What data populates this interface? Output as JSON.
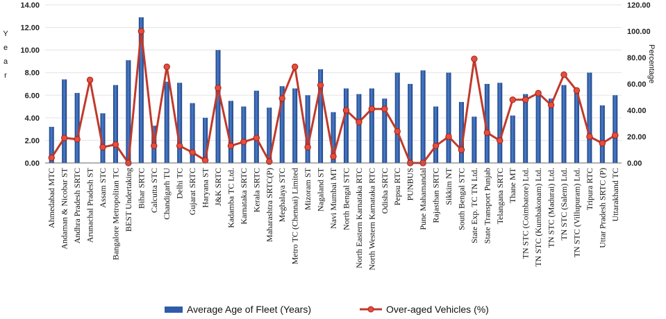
{
  "chart_data": {
    "type": "bar+line",
    "ylabel_left": "Year",
    "ylabel_right": "Percentage",
    "ylim_left": [
      0,
      14
    ],
    "ylim_right": [
      0,
      120
    ],
    "yticks_left": [
      "0.00",
      "2.00",
      "4.00",
      "6.00",
      "8.00",
      "10.00",
      "12.00",
      "14.00"
    ],
    "yticks_right": [
      "0.00",
      "20.00",
      "40.00",
      "60.00",
      "80.00",
      "100.00",
      "120.00"
    ],
    "categories": [
      "Ahmedabad MTC",
      "Andaman & Nicobar ST",
      "Andhra Pradesh SRTC",
      "Arunachal Pradesh ST",
      "Assam STC",
      "Bangalore Metropolitan TC",
      "BEST Undertaking",
      "Bihar SRTC",
      "Calcutta STC",
      "Chandigarh TU",
      "Delhi TC",
      "Gujarat SRTC",
      "Haryana ST",
      "J&K SRTC",
      "Kadamba TC Ltd.",
      "Karnataka SRTC",
      "Kerala SRTC",
      "Maharashtra SRTC(P)",
      "Meghalaya STC",
      "Metro TC (Chennai) Limited",
      "Mizoram ST",
      "Nagaland ST",
      "Navi Mumbai MT",
      "North Bengal STC",
      "North Eastern Karnataka RTC",
      "North Western Karnataka RTC",
      "Odisha SRTC",
      "Pepsu RTC",
      "PUNBUS",
      "Pune Mahamandal",
      "Rajasthan SRTC",
      "Sikkim NT",
      "South Bengal STC",
      "State Exp. TC TN Ltd.",
      "State Transport Punjab",
      "Telangana SRTC",
      "Thane MT",
      "TN STC (Coimbatore) Ltd.",
      "TN STC (Kumbakonam) Ltd.",
      "TN STC (Madurai) Ltd.",
      "TN STC (Salem) Ltd.",
      "TN STC (Villupuram) Ltd.",
      "Tripura RTC",
      "Uttar Pradesh SRTC (P)",
      "Uttarakhand TC"
    ],
    "series": [
      {
        "name": "Average Age of Fleet (Years)",
        "type": "bar",
        "axis": "left",
        "color": "#2f5ba8",
        "values": [
          3.2,
          7.4,
          6.2,
          0,
          4.4,
          6.9,
          9.1,
          12.9,
          3.3,
          7.2,
          7.1,
          5.3,
          4.0,
          10.0,
          5.5,
          5.0,
          6.4,
          4.9,
          6.8,
          6.6,
          6.0,
          8.3,
          4.5,
          6.6,
          6.1,
          6.6,
          5.7,
          8.0,
          7.0,
          8.2,
          5.0,
          8.0,
          5.4,
          4.1,
          7.0,
          7.1,
          4.2,
          6.1,
          6.1,
          5.7,
          6.9,
          6.6,
          8.0,
          5.1,
          6.0
        ]
      },
      {
        "name": "Over-aged Vehicles (%)",
        "type": "line",
        "axis": "right",
        "color": "#c0392b",
        "values": [
          4,
          19,
          18,
          63,
          12,
          14,
          0,
          100,
          13,
          73,
          13,
          8,
          2,
          57,
          13,
          16,
          19,
          1,
          49,
          73,
          12,
          59,
          5,
          40,
          31,
          41,
          41,
          24,
          0,
          0,
          13,
          20,
          10,
          79,
          23,
          17,
          48,
          48,
          53,
          44,
          67,
          55,
          20,
          15,
          21
        ]
      }
    ],
    "legend": [
      "Average Age of Fleet (Years)",
      "Over-aged Vehicles (%)"
    ],
    "legend_position": "bottom"
  }
}
